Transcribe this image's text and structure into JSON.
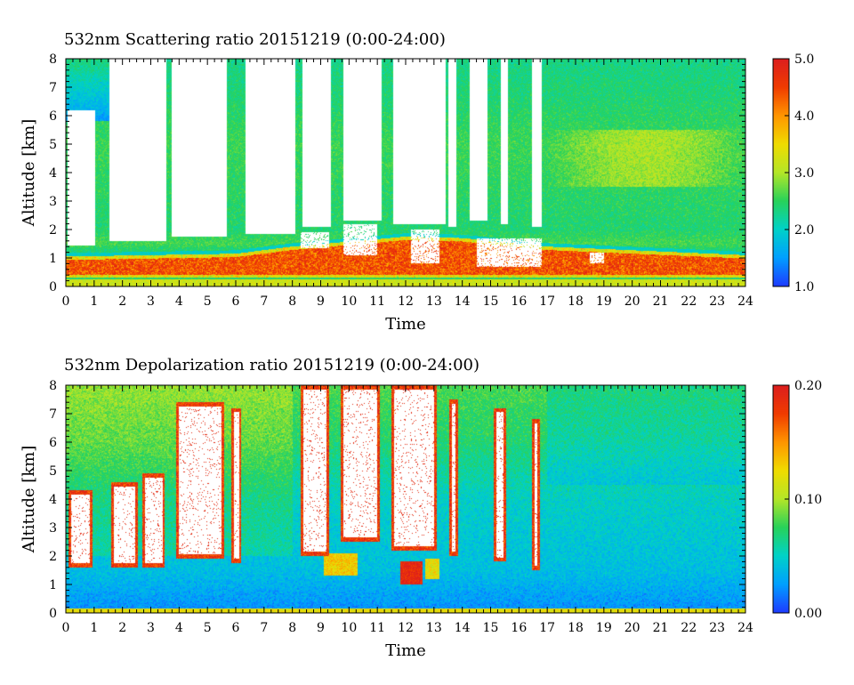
{
  "chart_data": [
    {
      "type": "heatmap",
      "title": "532nm Scattering ratio  20151219 (0:00-24:00)",
      "xlabel": "Time",
      "ylabel": "Altitude [km]",
      "xlim": [
        0,
        24
      ],
      "ylim": [
        0,
        8
      ],
      "x_ticks": [
        "0",
        "1",
        "2",
        "3",
        "4",
        "5",
        "6",
        "7",
        "8",
        "9",
        "10",
        "11",
        "12",
        "13",
        "14",
        "15",
        "16",
        "17",
        "18",
        "19",
        "20",
        "21",
        "22",
        "23",
        "24"
      ],
      "y_ticks": [
        "0",
        "1",
        "2",
        "3",
        "4",
        "5",
        "6",
        "7",
        "8"
      ],
      "colorbar": {
        "range": [
          1.0,
          5.0
        ],
        "ticks": [
          "1.0",
          "2.0",
          "3.0",
          "4.0",
          "5.0"
        ],
        "colors": [
          "#1e3cff",
          "#00a0ff",
          "#00d2c8",
          "#28d25a",
          "#b4e628",
          "#f0dc00",
          "#ff9600",
          "#f03c00",
          "#dc1e1e"
        ]
      },
      "background": {
        "0": 2.4,
        "1.3": 2.4,
        "1.5": 2.6,
        "2": 2.4,
        "3": 2.45,
        "5": 2.55,
        "6.5": 2.4,
        "8": 2.3
      },
      "surface_layer": [
        0,
        0.25,
        3.2
      ],
      "boundary_layer": {
        "bottom": 0.3,
        "top_profile": [
          [
            0,
            1.05
          ],
          [
            6,
            1.15
          ],
          [
            8,
            1.4
          ],
          [
            12,
            1.75
          ],
          [
            14,
            1.7
          ],
          [
            17,
            1.4
          ],
          [
            24,
            1.1
          ]
        ],
        "value": 4.4
      },
      "cloud_gaps": [
        [
          0.05,
          1.05,
          1.45,
          6.2
        ],
        [
          1.55,
          3.55,
          1.6,
          8
        ],
        [
          3.75,
          5.7,
          1.75,
          8
        ],
        [
          6.35,
          8.1,
          1.85,
          8
        ],
        [
          8.35,
          9.35,
          2.1,
          8
        ],
        [
          9.8,
          11.15,
          2.3,
          8
        ],
        [
          11.55,
          13.4,
          2.2,
          8
        ],
        [
          13.5,
          13.8,
          2.1,
          8
        ],
        [
          14.25,
          14.9,
          2.3,
          8
        ],
        [
          15.35,
          15.6,
          2.2,
          8
        ],
        [
          16.45,
          16.8,
          2.1,
          8
        ]
      ],
      "low_gaps": [
        [
          8.3,
          9.3,
          1.35,
          1.9
        ],
        [
          9.8,
          11.0,
          1.1,
          2.2
        ],
        [
          12.2,
          13.2,
          0.8,
          2.0
        ],
        [
          14.5,
          16.8,
          0.7,
          1.7
        ],
        [
          18.5,
          19.0,
          0.8,
          1.2
        ]
      ],
      "upper_cloud": [
        0.0,
        3.5,
        5.8,
        8.0,
        1.5
      ]
    },
    {
      "type": "heatmap",
      "title": "532nm Depolarization ratio  20151219 (0:00-24:00)",
      "xlabel": "Time",
      "ylabel": "Altitude [km]",
      "xlim": [
        0,
        24
      ],
      "ylim": [
        0,
        8
      ],
      "x_ticks": [
        "0",
        "1",
        "2",
        "3",
        "4",
        "5",
        "6",
        "7",
        "8",
        "9",
        "10",
        "11",
        "12",
        "13",
        "14",
        "15",
        "16",
        "17",
        "18",
        "19",
        "20",
        "21",
        "22",
        "23",
        "24"
      ],
      "y_ticks": [
        "0",
        "1",
        "2",
        "3",
        "4",
        "5",
        "6",
        "7",
        "8"
      ],
      "colorbar": {
        "range": [
          0.0,
          0.2
        ],
        "ticks": [
          "0.00",
          "0.10",
          "0.20"
        ],
        "colors": [
          "#1e3cff",
          "#00a0ff",
          "#00d2c8",
          "#28d25a",
          "#b4e628",
          "#f0dc00",
          "#ff9600",
          "#f03c00",
          "#dc1e1e"
        ]
      },
      "background_profile": [
        [
          0,
          0.02
        ],
        [
          1.5,
          0.04
        ],
        [
          4,
          0.05
        ],
        [
          6,
          0.07
        ],
        [
          8,
          0.08
        ]
      ],
      "surface_layer": [
        0,
        0.15,
        0.12
      ],
      "cloud_gaps": [
        [
          0.1,
          0.95,
          1.6,
          4.3
        ],
        [
          1.6,
          2.55,
          1.6,
          4.6
        ],
        [
          2.7,
          3.5,
          1.6,
          4.9
        ],
        [
          3.9,
          5.6,
          1.9,
          7.4
        ],
        [
          5.85,
          6.2,
          1.75,
          7.2
        ],
        [
          8.3,
          9.3,
          2.0,
          8
        ],
        [
          9.7,
          11.1,
          2.5,
          8
        ],
        [
          11.5,
          13.1,
          2.2,
          8
        ],
        [
          13.55,
          13.85,
          2.0,
          7.5
        ],
        [
          15.1,
          15.55,
          1.8,
          7.2
        ],
        [
          16.45,
          16.75,
          1.5,
          6.8
        ]
      ],
      "hot_spots": [
        [
          11.8,
          12.6,
          1.0,
          1.8,
          0.19
        ],
        [
          9.1,
          10.3,
          1.3,
          2.1,
          0.13
        ],
        [
          12.7,
          13.2,
          1.2,
          1.9,
          0.12
        ]
      ]
    }
  ]
}
